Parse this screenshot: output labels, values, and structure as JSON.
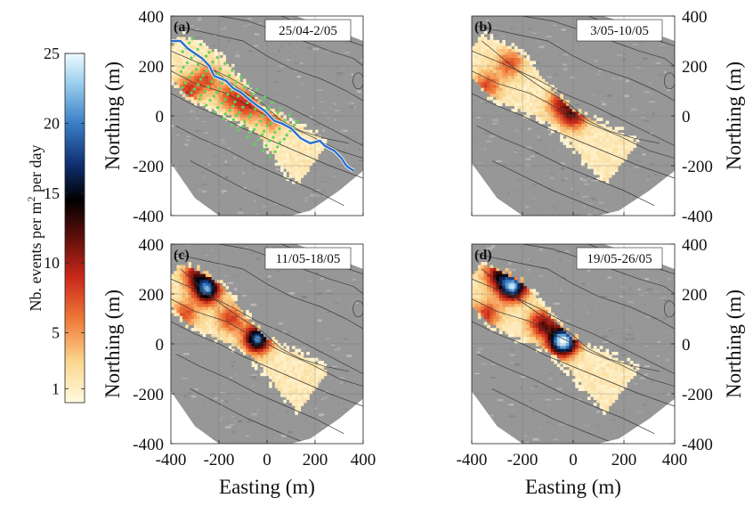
{
  "chart_data": [
    {
      "type": "heatmap",
      "panel_label": "(a)",
      "date_range": "25/04-2/05",
      "xlim": [
        -400,
        400
      ],
      "ylim": [
        -400,
        400
      ],
      "ylabel": "Northing (m)",
      "xlabel": "",
      "x_ticks": [
        "-400",
        "-200",
        "0",
        "200",
        "400"
      ],
      "y_ticks": [
        "400",
        "200",
        "0",
        "-200",
        "-400"
      ],
      "y_axis_side": "left",
      "show_x_ticks": false,
      "hotspots": [
        {
          "x": -330,
          "y": 100,
          "peak": 7
        },
        {
          "x": -250,
          "y": 150,
          "peak": 6
        },
        {
          "x": -150,
          "y": 80,
          "peak": 6
        },
        {
          "x": -80,
          "y": 40,
          "peak": 7
        },
        {
          "x": 20,
          "y": -10,
          "peak": 5
        }
      ],
      "has_stream_line": true,
      "has_station_dots": true
    },
    {
      "type": "heatmap",
      "panel_label": "(b)",
      "date_range": "3/05-10/05",
      "xlim": [
        -400,
        400
      ],
      "ylim": [
        -400,
        400
      ],
      "ylabel": "Northing (m)",
      "xlabel": "",
      "x_ticks": [
        "-400",
        "-200",
        "0",
        "200",
        "400"
      ],
      "y_ticks": [
        "400",
        "200",
        "0",
        "-200",
        "-400"
      ],
      "y_axis_side": "right",
      "show_x_ticks": false,
      "hotspots": [
        {
          "x": -250,
          "y": 210,
          "peak": 6
        },
        {
          "x": -340,
          "y": 120,
          "peak": 6
        },
        {
          "x": -50,
          "y": 50,
          "peak": 7
        },
        {
          "x": 0,
          "y": 0,
          "peak": 9
        }
      ],
      "has_stream_line": false,
      "has_station_dots": false
    },
    {
      "type": "heatmap",
      "panel_label": "(c)",
      "date_range": "11/05-18/05",
      "xlim": [
        -400,
        400
      ],
      "ylim": [
        -400,
        400
      ],
      "ylabel": "Northing (m)",
      "xlabel": "Easting (m)",
      "x_ticks": [
        "-400",
        "-200",
        "0",
        "200",
        "400"
      ],
      "y_ticks": [
        "400",
        "200",
        "0",
        "-200",
        "-400"
      ],
      "y_axis_side": "left",
      "show_x_ticks": true,
      "hotspots": [
        {
          "x": -250,
          "y": 220,
          "peak": 18
        },
        {
          "x": -300,
          "y": 280,
          "peak": 8
        },
        {
          "x": -150,
          "y": 100,
          "peak": 7
        },
        {
          "x": -40,
          "y": 20,
          "peak": 17
        },
        {
          "x": -340,
          "y": 120,
          "peak": 6
        }
      ],
      "has_stream_line": false,
      "has_station_dots": false
    },
    {
      "type": "heatmap",
      "panel_label": "(d)",
      "date_range": "19/05-26/05",
      "xlim": [
        -400,
        400
      ],
      "ylim": [
        -400,
        400
      ],
      "ylabel": "Northing (m)",
      "xlabel": "Easting (m)",
      "x_ticks": [
        "-400",
        "-200",
        "0",
        "200",
        "400"
      ],
      "y_ticks": [
        "400",
        "200",
        "0",
        "-200",
        "-400"
      ],
      "y_axis_side": "right",
      "show_x_ticks": true,
      "hotspots": [
        {
          "x": -240,
          "y": 230,
          "peak": 20
        },
        {
          "x": -300,
          "y": 280,
          "peak": 9
        },
        {
          "x": -120,
          "y": 80,
          "peak": 10
        },
        {
          "x": -40,
          "y": 10,
          "peak": 24
        },
        {
          "x": -340,
          "y": 120,
          "peak": 7
        }
      ],
      "has_stream_line": false,
      "has_station_dots": false
    }
  ],
  "colorbar": {
    "label": "Nb. events per m² per day",
    "label_main": "Nb. events per m",
    "label_sup": "2",
    "label_tail": " per day",
    "ticks": [
      {
        "value": 25,
        "label": "25"
      },
      {
        "value": 20,
        "label": "20"
      },
      {
        "value": 15,
        "label": "15"
      },
      {
        "value": 10,
        "label": "10"
      },
      {
        "value": 5,
        "label": "5"
      },
      {
        "value": 1,
        "label": "1"
      }
    ],
    "range": [
      0,
      25
    ],
    "stops": [
      {
        "v": 0,
        "color": "#fffbe0"
      },
      {
        "v": 3,
        "color": "#fbd58c"
      },
      {
        "v": 6,
        "color": "#ef7838"
      },
      {
        "v": 9,
        "color": "#c8281a"
      },
      {
        "v": 12,
        "color": "#5a0e0a"
      },
      {
        "v": 14.5,
        "color": "#000000"
      },
      {
        "v": 17,
        "color": "#0e2e6e"
      },
      {
        "v": 20,
        "color": "#3a7fc6"
      },
      {
        "v": 23,
        "color": "#9fd2ef"
      },
      {
        "v": 25,
        "color": "#eefaff"
      }
    ]
  },
  "colors": {
    "terrain": "#9d9d9d",
    "contour": "#3a3a3a",
    "stream": "#2b6fc7",
    "stations": "#5cd65c"
  }
}
